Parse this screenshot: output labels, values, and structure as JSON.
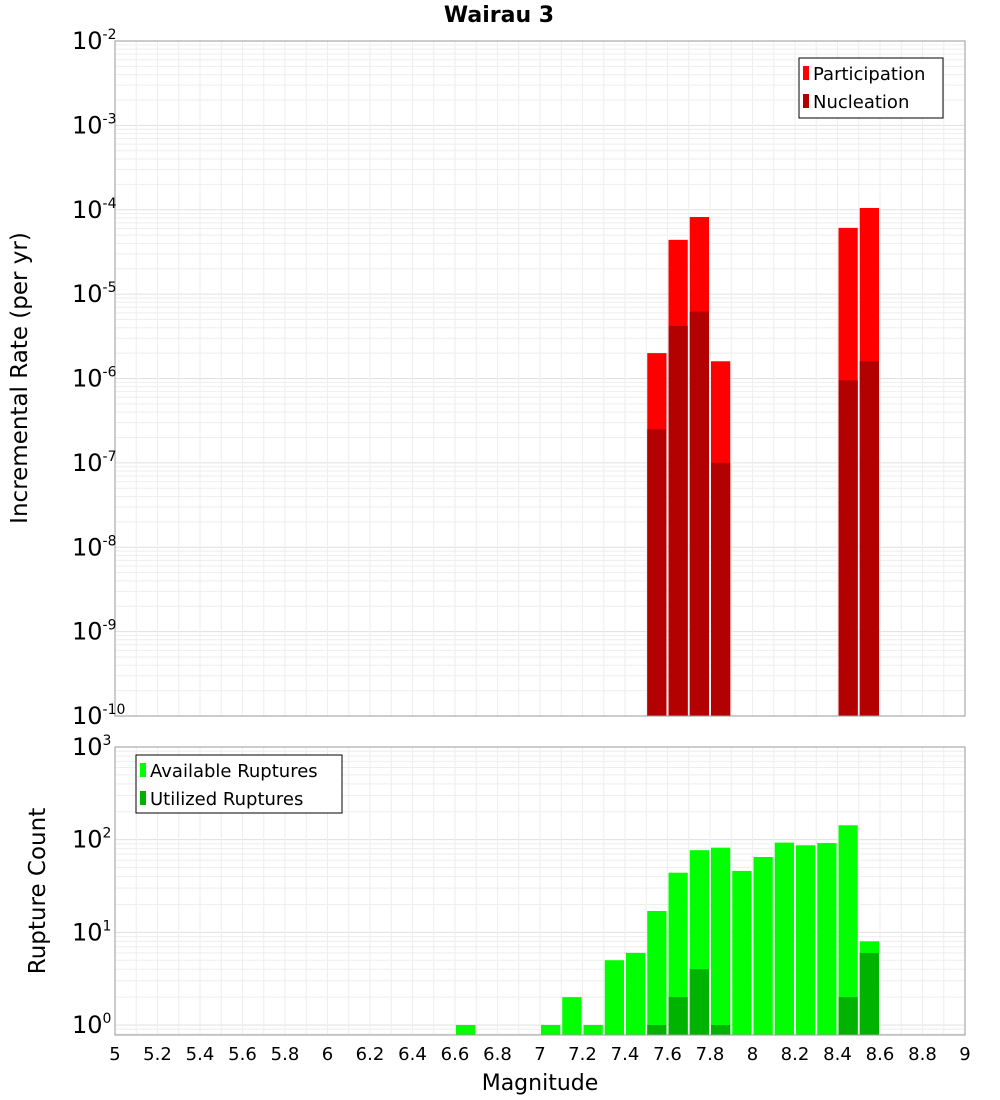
{
  "title": "Wairau 3",
  "chart_data": [
    {
      "type": "bar",
      "name": "rate-panel",
      "ylabel": "Incremental Rate (per yr)",
      "yscale": "log",
      "ylim_exp": [
        -10,
        -2
      ],
      "y_tick_base": "10",
      "y_tick_exponents": [
        "-10",
        "-9",
        "-8",
        "-7",
        "-6",
        "-5",
        "-4",
        "-3",
        "-2"
      ],
      "grid": true,
      "legend_position": "top-right",
      "x": [
        7.55,
        7.65,
        7.75,
        7.85,
        8.45,
        8.55
      ],
      "series": [
        {
          "name": "Participation",
          "color": "#ff0000",
          "values": [
            2e-06,
            4.4e-05,
            8.2e-05,
            1.6e-06,
            6.1e-05,
            0.000105
          ]
        },
        {
          "name": "Nucleation",
          "color": "#b30000",
          "values": [
            2.5e-07,
            4.2e-06,
            6.2e-06,
            1e-07,
            9.5e-07,
            1.6e-06
          ]
        }
      ]
    },
    {
      "type": "bar",
      "name": "count-panel",
      "ylabel": "Rupture Count",
      "xlabel": "Magnitude",
      "yscale": "log",
      "ylim": [
        0.78,
        1000
      ],
      "y_tick_base": "10",
      "y_tick_exponents": [
        "0",
        "1",
        "2",
        "3"
      ],
      "xlim": [
        5,
        9
      ],
      "x_ticks": [
        "5",
        "5.2",
        "5.4",
        "5.6",
        "5.8",
        "6",
        "6.2",
        "6.4",
        "6.6",
        "6.8",
        "7",
        "7.2",
        "7.4",
        "7.6",
        "7.8",
        "8",
        "8.2",
        "8.4",
        "8.6",
        "8.8",
        "9"
      ],
      "grid": true,
      "legend_position": "top-left",
      "x": [
        6.65,
        7.05,
        7.15,
        7.25,
        7.35,
        7.45,
        7.55,
        7.65,
        7.75,
        7.85,
        7.95,
        8.05,
        8.15,
        8.25,
        8.35,
        8.45,
        8.55
      ],
      "series": [
        {
          "name": "Available Ruptures",
          "color": "#00ff00",
          "values": [
            1,
            1,
            2,
            1,
            5,
            6,
            17,
            44,
            77,
            82,
            46,
            65,
            93,
            87,
            92,
            143,
            8
          ]
        },
        {
          "name": "Utilized Ruptures",
          "color": "#00b300",
          "values": [
            0,
            0,
            0,
            0,
            0,
            0,
            1,
            2,
            4,
            1,
            0,
            0,
            0,
            0,
            0,
            2,
            6
          ]
        }
      ]
    }
  ]
}
